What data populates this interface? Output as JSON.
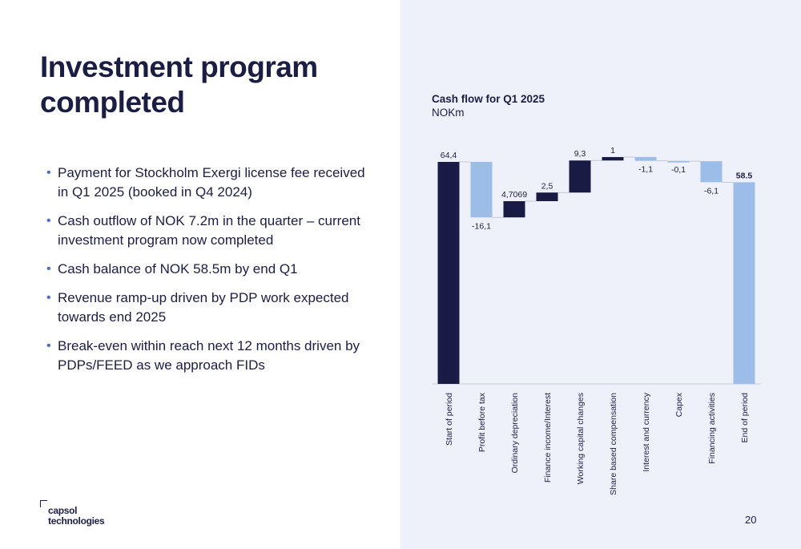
{
  "slide": {
    "title": "Investment program\ncompleted",
    "page_number": "20",
    "bullets": [
      "Payment for Stockholm Exergi license fee received in Q1 2025 (booked in Q4 2024)",
      "Cash outflow of NOK 7.2m in the quarter – current investment program now completed",
      "Cash balance of NOK 58.5m by end Q1",
      "Revenue ramp-up driven by PDP work expected towards end 2025",
      "Break-even within reach next 12 months driven by PDPs/FEED as we approach FIDs"
    ],
    "logo": {
      "line1": "capsol",
      "line2": "technologies"
    }
  },
  "colors": {
    "dark": "#1a1b45",
    "light": "#9dbde9",
    "text": "#1c1d43",
    "accent": "#4a6fc2",
    "panel": "#eef1fa"
  },
  "chart_data": {
    "type": "waterfall",
    "title": "Cash flow for Q1 2025",
    "unit": "NOKm",
    "ylim": [
      0,
      66
    ],
    "categories": [
      "Start of period",
      "Profit before tax",
      "Ordinary depreciation",
      "Finance income/Interest",
      "Working capital changes",
      "Share based compensation",
      "Interest and currency",
      "Capex",
      "Financing activities",
      "End of period"
    ],
    "values": [
      64.4,
      -16.1,
      4.7069,
      2.5,
      9.3,
      1,
      -1.1,
      -0.1,
      -6.1,
      58.5
    ],
    "labels": [
      "64,4",
      "-16,1",
      "4,7069",
      "2,5",
      "9,3",
      "1",
      "-1,1",
      "-0,1",
      "-6,1",
      "58.5"
    ],
    "kinds": [
      "total",
      "delta",
      "delta",
      "delta",
      "delta",
      "delta",
      "delta",
      "delta",
      "delta",
      "total"
    ],
    "bar_colors": [
      "dark",
      "light",
      "dark",
      "dark",
      "dark",
      "dark",
      "light",
      "light",
      "light",
      "light"
    ],
    "grid": false,
    "legend": "none"
  }
}
